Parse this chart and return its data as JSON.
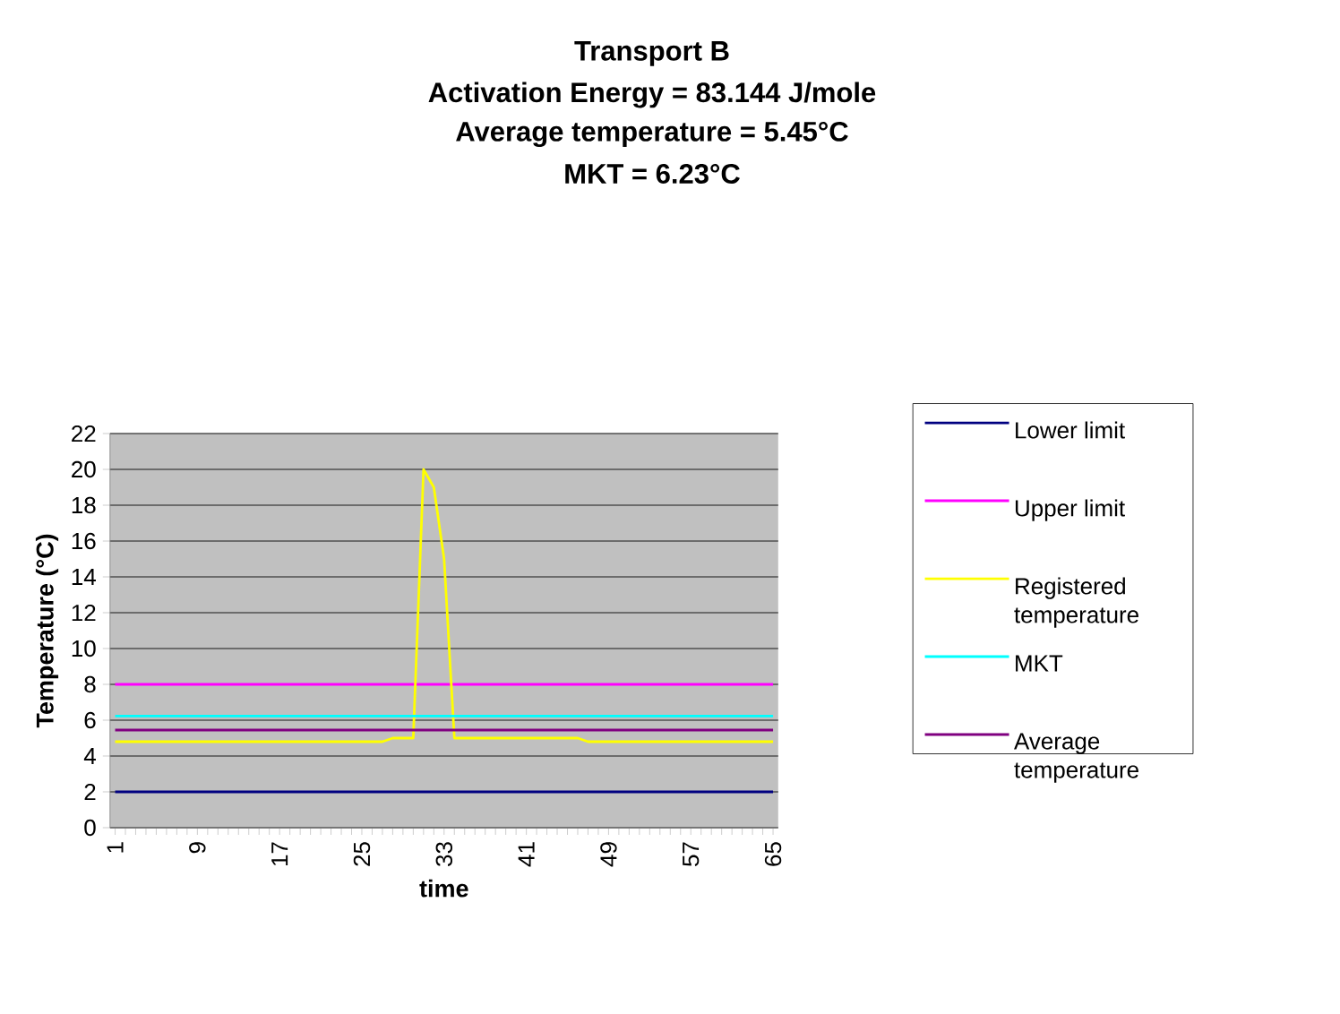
{
  "chart_data": {
    "type": "line",
    "title": "Transport B",
    "subtitle": "Activation Energy = 83.144 J/mole",
    "annotations": [
      "Average temperature = 5.45°C",
      "MKT = 6.23°C"
    ],
    "xlabel": "time",
    "ylabel": "Temperature (°C)",
    "categories": [
      "1",
      null,
      null,
      null,
      null,
      null,
      null,
      null,
      "9",
      null,
      null,
      null,
      null,
      null,
      null,
      null,
      "17",
      null,
      null,
      null,
      null,
      null,
      null,
      null,
      "25",
      null,
      null,
      null,
      null,
      null,
      null,
      null,
      "33",
      null,
      null,
      null,
      null,
      null,
      null,
      null,
      "41",
      null,
      null,
      null,
      null,
      null,
      null,
      null,
      "49",
      null,
      null,
      null,
      null,
      null,
      null,
      null,
      "57",
      null,
      null,
      null,
      null,
      null,
      null,
      null,
      "65"
    ],
    "ylim": [
      0,
      22
    ],
    "yticks": [
      0,
      2,
      4,
      6,
      8,
      10,
      12,
      14,
      16,
      18,
      20,
      22
    ],
    "grid": "y",
    "legend": "right",
    "series": [
      {
        "name": "Lower limit",
        "color": "#000080",
        "values": [
          2,
          2,
          2,
          2,
          2,
          2,
          2,
          2,
          2,
          2,
          2,
          2,
          2,
          2,
          2,
          2,
          2,
          2,
          2,
          2,
          2,
          2,
          2,
          2,
          2,
          2,
          2,
          2,
          2,
          2,
          2,
          2,
          2,
          2,
          2,
          2,
          2,
          2,
          2,
          2,
          2,
          2,
          2,
          2,
          2,
          2,
          2,
          2,
          2,
          2,
          2,
          2,
          2,
          2,
          2,
          2,
          2,
          2,
          2,
          2,
          2,
          2,
          2,
          2,
          2
        ]
      },
      {
        "name": "Upper limit",
        "color": "#ff00ff",
        "values": [
          8,
          8,
          8,
          8,
          8,
          8,
          8,
          8,
          8,
          8,
          8,
          8,
          8,
          8,
          8,
          8,
          8,
          8,
          8,
          8,
          8,
          8,
          8,
          8,
          8,
          8,
          8,
          8,
          8,
          8,
          8,
          8,
          8,
          8,
          8,
          8,
          8,
          8,
          8,
          8,
          8,
          8,
          8,
          8,
          8,
          8,
          8,
          8,
          8,
          8,
          8,
          8,
          8,
          8,
          8,
          8,
          8,
          8,
          8,
          8,
          8,
          8,
          8,
          8,
          8
        ]
      },
      {
        "name": "Registered temperature",
        "color": "#ffff00",
        "values": [
          4.8,
          4.8,
          4.8,
          4.8,
          4.8,
          4.8,
          4.8,
          4.8,
          4.8,
          4.8,
          4.8,
          4.8,
          4.8,
          4.8,
          4.8,
          4.8,
          4.8,
          4.8,
          4.8,
          4.8,
          4.8,
          4.8,
          4.8,
          4.8,
          4.8,
          4.8,
          4.8,
          5.0,
          5.0,
          5.0,
          20,
          19,
          15,
          5.0,
          5.0,
          5.0,
          5.0,
          5.0,
          5.0,
          5.0,
          5.0,
          5.0,
          5.0,
          5.0,
          5.0,
          5.0,
          4.8,
          4.8,
          4.8,
          4.8,
          4.8,
          4.8,
          4.8,
          4.8,
          4.8,
          4.8,
          4.8,
          4.8,
          4.8,
          4.8,
          4.8,
          4.8,
          4.8,
          4.8,
          4.8
        ]
      },
      {
        "name": "MKT",
        "color": "#00ffff",
        "values": [
          6.23,
          6.23,
          6.23,
          6.23,
          6.23,
          6.23,
          6.23,
          6.23,
          6.23,
          6.23,
          6.23,
          6.23,
          6.23,
          6.23,
          6.23,
          6.23,
          6.23,
          6.23,
          6.23,
          6.23,
          6.23,
          6.23,
          6.23,
          6.23,
          6.23,
          6.23,
          6.23,
          6.23,
          6.23,
          6.23,
          6.23,
          6.23,
          6.23,
          6.23,
          6.23,
          6.23,
          6.23,
          6.23,
          6.23,
          6.23,
          6.23,
          6.23,
          6.23,
          6.23,
          6.23,
          6.23,
          6.23,
          6.23,
          6.23,
          6.23,
          6.23,
          6.23,
          6.23,
          6.23,
          6.23,
          6.23,
          6.23,
          6.23,
          6.23,
          6.23,
          6.23,
          6.23,
          6.23,
          6.23,
          6.23
        ]
      },
      {
        "name": "Average temperature",
        "color": "#800080",
        "values": [
          5.45,
          5.45,
          5.45,
          5.45,
          5.45,
          5.45,
          5.45,
          5.45,
          5.45,
          5.45,
          5.45,
          5.45,
          5.45,
          5.45,
          5.45,
          5.45,
          5.45,
          5.45,
          5.45,
          5.45,
          5.45,
          5.45,
          5.45,
          5.45,
          5.45,
          5.45,
          5.45,
          5.45,
          5.45,
          5.45,
          5.45,
          5.45,
          5.45,
          5.45,
          5.45,
          5.45,
          5.45,
          5.45,
          5.45,
          5.45,
          5.45,
          5.45,
          5.45,
          5.45,
          5.45,
          5.45,
          5.45,
          5.45,
          5.45,
          5.45,
          5.45,
          5.45,
          5.45,
          5.45,
          5.45,
          5.45,
          5.45,
          5.45,
          5.45,
          5.45,
          5.45,
          5.45,
          5.45,
          5.45,
          5.45
        ]
      }
    ]
  }
}
